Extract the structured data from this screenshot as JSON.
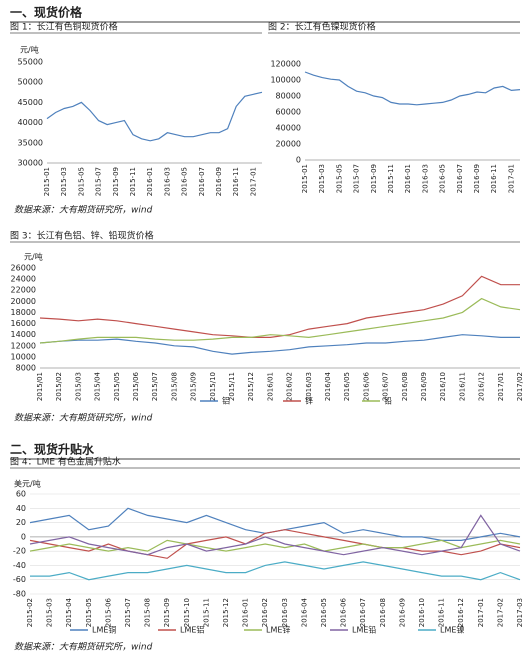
{
  "headings": [
    "一、现货价格",
    "二、现货升贴水"
  ],
  "sources": [
    "数据来源：大有期货研究所，wind",
    "数据来源：大有期货研究所，wind",
    "数据来源：大有期货研究所，wind"
  ],
  "chart_data": [
    {
      "type": "line",
      "title": "图 1：长江有色铜现货价格",
      "y_label": "元/吨",
      "categories": [
        "2015-01",
        null,
        "2015-03",
        null,
        "2015-05",
        null,
        "2015-07",
        null,
        "2015-09",
        null,
        "2015-11",
        null,
        "2016-01",
        null,
        "2016-03",
        null,
        "2016-05",
        null,
        "2016-07",
        null,
        "2016-09",
        null,
        "2016-11",
        null,
        "2017-01",
        null
      ],
      "series": [
        {
          "color": "#4f81bd",
          "values": [
            41000,
            42500,
            43500,
            44000,
            45000,
            43000,
            40500,
            39500,
            40000,
            40500,
            37000,
            36000,
            35500,
            36000,
            37500,
            37000,
            36500,
            36500,
            37000,
            37500,
            37500,
            38500,
            44000,
            46500,
            47000,
            47500
          ]
        }
      ],
      "ylim": [
        30000,
        55000
      ],
      "yticks": [
        30000,
        35000,
        40000,
        45000,
        50000,
        55000
      ]
    },
    {
      "type": "line",
      "title": "图 2：长江有色镍现货价格",
      "categories": [
        "2015-01",
        null,
        "2015-03",
        null,
        "2015-05",
        null,
        "2015-07",
        null,
        "2015-09",
        null,
        "2015-11",
        null,
        "2016-01",
        null,
        "2016-03",
        null,
        "2016-05",
        null,
        "2016-07",
        null,
        "2016-09",
        null,
        "2016-11",
        null,
        "2017-01",
        null
      ],
      "series": [
        {
          "color": "#4f81bd",
          "values": [
            110000,
            106000,
            103000,
            101000,
            100000,
            92000,
            86000,
            84000,
            80000,
            78000,
            72000,
            70000,
            70000,
            69000,
            70000,
            71000,
            72000,
            75000,
            80000,
            82000,
            85000,
            84000,
            90000,
            92000,
            87000,
            88000
          ]
        }
      ],
      "ylim": [
        0,
        120000
      ],
      "yticks": [
        0,
        20000,
        40000,
        60000,
        80000,
        100000,
        120000
      ]
    },
    {
      "type": "line",
      "title": "图 3：长江有色铝、锌、铅现货价格",
      "y_label": "元/吨",
      "categories": [
        "2015/01",
        "2015/02",
        "2015/03",
        "2015/04",
        "2015/05",
        "2015/06",
        "2015/07",
        "2015/08",
        "2015/09",
        "2015/10",
        "2015/11",
        "2015/12",
        "2016/01",
        "2016/02",
        "2016/03",
        "2016/04",
        "2016/05",
        "2016/06",
        "2016/07",
        "2016/08",
        "2016/09",
        "2016/10",
        "2016/11",
        "2016/12",
        "2017/01",
        "2017/02"
      ],
      "series": [
        {
          "name": "铝",
          "color": "#4f81bd",
          "values": [
            12500,
            12800,
            13000,
            13000,
            13200,
            12800,
            12500,
            12000,
            11800,
            11000,
            10500,
            10800,
            11000,
            11300,
            11800,
            12000,
            12200,
            12500,
            12500,
            12800,
            13000,
            13500,
            14000,
            13800,
            13500,
            13500
          ]
        },
        {
          "name": "锌",
          "color": "#c0504d",
          "values": [
            17000,
            16800,
            16500,
            16800,
            16500,
            16000,
            15500,
            15000,
            14500,
            14000,
            13800,
            13500,
            13500,
            14000,
            15000,
            15500,
            16000,
            17000,
            17500,
            18000,
            18500,
            19500,
            21000,
            24500,
            23000,
            23000
          ]
        },
        {
          "name": "铅",
          "color": "#9bbb59",
          "values": [
            12500,
            12800,
            13200,
            13500,
            13500,
            13500,
            13200,
            13000,
            13000,
            13200,
            13500,
            13500,
            14000,
            13800,
            13500,
            14000,
            14500,
            15000,
            15500,
            16000,
            16500,
            17000,
            18000,
            20500,
            19000,
            18500
          ]
        }
      ],
      "ylim": [
        8000,
        26000
      ],
      "yticks": [
        8000,
        10000,
        12000,
        14000,
        16000,
        18000,
        20000,
        22000,
        24000,
        26000
      ]
    },
    {
      "type": "line",
      "title": "图 4：LME 有色金属升贴水",
      "y_label": "美元/吨",
      "categories": [
        "2015-02",
        "2015-03",
        "2015-04",
        "2015-05",
        "2015-06",
        "2015-07",
        "2015-08",
        "2015-09",
        "2015-10",
        "2015-11",
        "2015-12",
        "2016-01",
        "2016-02",
        "2016-03",
        "2016-04",
        "2016-05",
        "2016-06",
        "2016-07",
        "2016-08",
        "2016-09",
        "2016-10",
        "2016-11",
        "2016-12",
        "2017-01",
        "2017-02",
        "2017-03"
      ],
      "series": [
        {
          "name": "LME铜",
          "color": "#4f81bd",
          "values": [
            20,
            25,
            30,
            10,
            15,
            40,
            30,
            25,
            20,
            30,
            20,
            10,
            5,
            10,
            15,
            20,
            5,
            10,
            5,
            0,
            0,
            -5,
            -5,
            0,
            5,
            0
          ]
        },
        {
          "name": "LME铝",
          "color": "#c0504d",
          "values": [
            -5,
            -10,
            -15,
            -20,
            -10,
            -20,
            -25,
            -30,
            -10,
            -5,
            0,
            -10,
            5,
            10,
            5,
            0,
            -5,
            -10,
            -15,
            -15,
            -20,
            -20,
            -25,
            -20,
            -10,
            -15
          ]
        },
        {
          "name": "LME锌",
          "color": "#9bbb59",
          "values": [
            -20,
            -15,
            -10,
            -15,
            -20,
            -15,
            -20,
            -5,
            -10,
            -15,
            -20,
            -15,
            -10,
            -15,
            -10,
            -20,
            -15,
            -10,
            -15,
            -15,
            -10,
            -5,
            -15,
            -10,
            -5,
            -10
          ]
        },
        {
          "name": "LME铅",
          "color": "#8064a2",
          "values": [
            -10,
            -5,
            0,
            -10,
            -15,
            -20,
            -25,
            -15,
            -10,
            -20,
            -15,
            -10,
            0,
            -10,
            -15,
            -20,
            -25,
            -20,
            -15,
            -20,
            -25,
            -20,
            -15,
            30,
            -10,
            -20
          ]
        },
        {
          "name": "LME镍",
          "color": "#4bacc6",
          "values": [
            -55,
            -55,
            -50,
            -60,
            -55,
            -50,
            -50,
            -45,
            -40,
            -45,
            -50,
            -50,
            -40,
            -35,
            -40,
            -45,
            -40,
            -35,
            -40,
            -45,
            -50,
            -55,
            -55,
            -60,
            -50,
            -60
          ]
        }
      ],
      "ylim": [
        -80,
        60
      ],
      "yticks": [
        -80,
        -60,
        -40,
        -20,
        0,
        20,
        40,
        60
      ],
      "grid": true
    }
  ]
}
